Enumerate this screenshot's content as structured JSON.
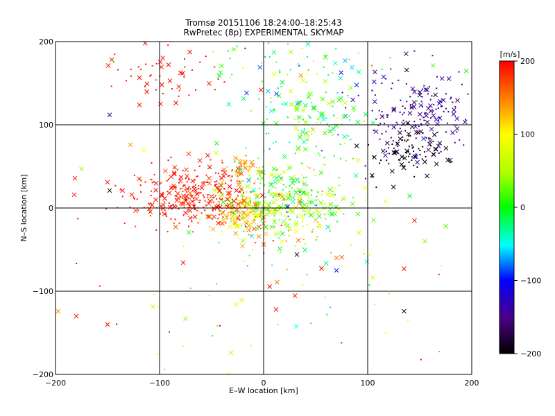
{
  "chart_data": {
    "type": "scatter",
    "title": "Tromsø 20151106 18:24:00–18:25:43",
    "subtitle": "RwPretec (8p) EXPERIMENTAL SKYMAP",
    "xlabel": "E–W location [km]",
    "ylabel": "N–S location [km]",
    "xlim": [
      -200,
      200
    ],
    "ylim": [
      -200,
      200
    ],
    "xticks": [
      "−200",
      "−100",
      "0",
      "100",
      "200"
    ],
    "yticks": [
      "−200",
      "−100",
      "0",
      "100",
      "200"
    ],
    "grid": true,
    "colorbar": {
      "label": "[m/s]",
      "min": -200,
      "max": 200,
      "ticks": [
        "200",
        "100",
        "0",
        "−100",
        "−200"
      ]
    },
    "clusters": [
      {
        "x": -70,
        "y": 15,
        "sx": 32,
        "sy": 18,
        "v": 190,
        "vs": 12,
        "n": 320
      },
      {
        "x": -20,
        "y": -5,
        "sx": 15,
        "sy": 14,
        "v": 130,
        "vs": 30,
        "n": 140
      },
      {
        "x": -20,
        "y": 48,
        "sx": 9,
        "sy": 7,
        "v": 145,
        "vs": 15,
        "n": 35
      },
      {
        "x": 12,
        "y": 12,
        "sx": 25,
        "sy": 25,
        "v": 30,
        "vs": 45,
        "n": 230
      },
      {
        "x": 45,
        "y": 0,
        "sx": 28,
        "sy": 25,
        "v": 45,
        "vs": 55,
        "n": 120
      },
      {
        "x": 45,
        "y": 110,
        "sx": 30,
        "sy": 28,
        "v": -5,
        "vs": 45,
        "n": 140
      },
      {
        "x": 150,
        "y": 115,
        "sx": 28,
        "sy": 28,
        "v": -145,
        "vs": 18,
        "n": 180
      },
      {
        "x": 140,
        "y": 65,
        "sx": 20,
        "sy": 15,
        "v": -190,
        "vs": 8,
        "n": 90
      },
      {
        "x": -95,
        "y": 160,
        "sx": 28,
        "sy": 18,
        "v": 195,
        "vs": 8,
        "n": 55
      },
      {
        "x": 0,
        "y": -100,
        "sx": 90,
        "sy": 50,
        "v": 100,
        "vs": 100,
        "n": 70
      },
      {
        "x": 40,
        "y": 170,
        "sx": 60,
        "sy": 20,
        "v": 10,
        "vs": 60,
        "n": 60
      }
    ],
    "points": [
      {
        "x": -175,
        "y": 47,
        "v": 40,
        "m": "x"
      },
      {
        "x": -148,
        "y": 21,
        "v": -200,
        "m": "x"
      },
      {
        "x": -150,
        "y": 31,
        "v": 195,
        "m": "x"
      },
      {
        "x": -182,
        "y": 16,
        "v": 195,
        "m": "x"
      },
      {
        "x": -128,
        "y": 76,
        "v": 140,
        "m": "x"
      },
      {
        "x": -115,
        "y": 70,
        "v": 100,
        "m": "x"
      },
      {
        "x": -148,
        "y": 112,
        "v": -150,
        "m": "x"
      },
      {
        "x": -180,
        "y": -130,
        "v": 195,
        "m": "x"
      },
      {
        "x": -150,
        "y": -140,
        "v": 195,
        "m": "x"
      },
      {
        "x": -75,
        "y": -133,
        "v": 40,
        "m": "x"
      },
      {
        "x": 135,
        "y": -124,
        "v": -200,
        "m": "x"
      },
      {
        "x": 175,
        "y": -22,
        "v": 20,
        "m": "x"
      },
      {
        "x": 145,
        "y": -15,
        "v": 195,
        "m": "x"
      },
      {
        "x": 155,
        "y": -40,
        "v": 40,
        "m": "x"
      },
      {
        "x": 135,
        "y": -73,
        "v": 195,
        "m": "x"
      },
      {
        "x": 12,
        "y": -122,
        "v": 195,
        "m": "x"
      },
      {
        "x": 32,
        "y": -56,
        "v": -200,
        "m": "x"
      },
      {
        "x": 70,
        "y": -60,
        "v": 150,
        "m": "x"
      }
    ]
  }
}
